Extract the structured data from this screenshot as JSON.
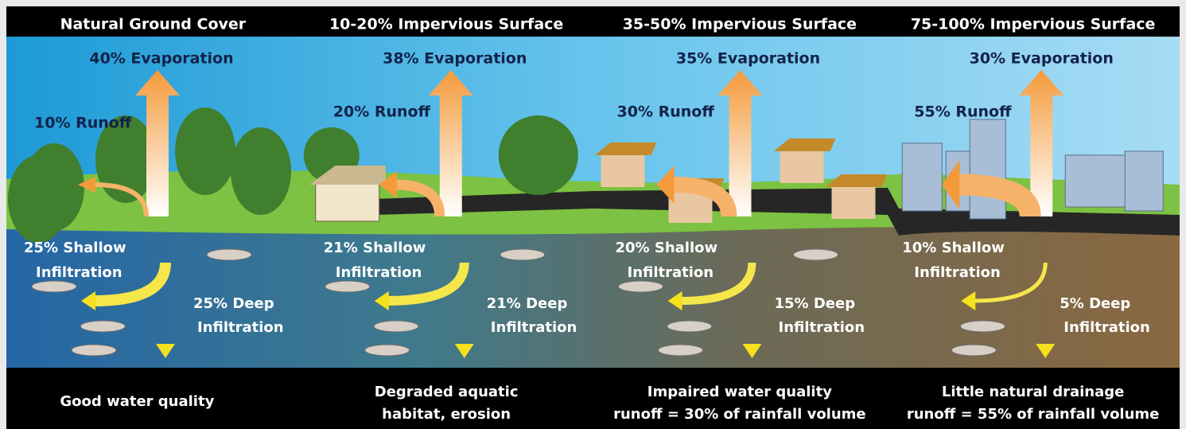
{
  "panels": [
    {
      "title": "Natural Ground Cover",
      "evaporation": "40% Evaporation",
      "runoff": "10% Runoff",
      "shallow": [
        "25% Shallow",
        "Infiltration"
      ],
      "deep": [
        "25% Deep",
        "Infiltration"
      ],
      "caption": [
        "Good water quality"
      ]
    },
    {
      "title": "10-20% Impervious Surface",
      "evaporation": "38% Evaporation",
      "runoff": "20% Runoff",
      "shallow": [
        "21% Shallow",
        "Infiltration"
      ],
      "deep": [
        "21% Deep",
        "Infiltration"
      ],
      "caption": [
        "Degraded aquatic",
        "habitat, erosion"
      ]
    },
    {
      "title": "35-50% Impervious Surface",
      "evaporation": "35% Evaporation",
      "runoff": "30% Runoff",
      "shallow": [
        "20% Shallow",
        "Infiltration"
      ],
      "deep": [
        "15% Deep",
        "Infiltration"
      ],
      "caption": [
        "Impaired water quality",
        "runoff = 30% of rainfall volume"
      ]
    },
    {
      "title": "75-100% Impervious Surface",
      "evaporation": "30% Evaporation",
      "runoff": "55% Runoff",
      "shallow": [
        "10% Shallow",
        "Infiltration"
      ],
      "deep": [
        "5% Deep",
        "Infiltration"
      ],
      "caption": [
        "Little natural drainage",
        "runoff = 55% of rainfall volume"
      ]
    }
  ]
}
